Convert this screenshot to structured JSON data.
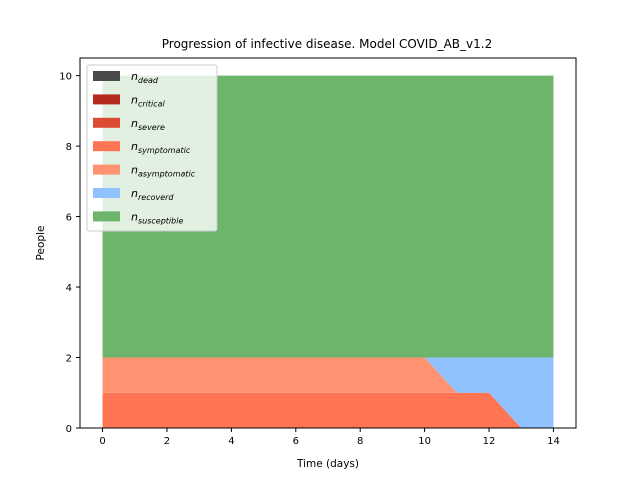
{
  "chart_data": {
    "type": "area",
    "title": "Progression of infective disease. Model COVID_AB_v1.2",
    "xlabel": "Time (days)",
    "ylabel": "People",
    "xlim": [
      -0.7,
      14.7
    ],
    "ylim": [
      0,
      10.5
    ],
    "x_ticks": [
      0,
      2,
      4,
      6,
      8,
      10,
      12,
      14
    ],
    "y_ticks": [
      0,
      2,
      4,
      6,
      8,
      10
    ],
    "stacked": true,
    "legend_placement": "top-left",
    "x": [
      0,
      1,
      2,
      3,
      4,
      5,
      6,
      7,
      8,
      9,
      10,
      11,
      12,
      13,
      14
    ],
    "series": [
      {
        "name": "n",
        "sub": "dead",
        "color": "#4a4a4a",
        "values": [
          0,
          0,
          0,
          0,
          0,
          0,
          0,
          0,
          0,
          0,
          0,
          0,
          0,
          0,
          0
        ]
      },
      {
        "name": "n",
        "sub": "critical",
        "color": "#b52b1f",
        "values": [
          0,
          0,
          0,
          0,
          0,
          0,
          0,
          0,
          0,
          0,
          0,
          0,
          0,
          0,
          0
        ]
      },
      {
        "name": "n",
        "sub": "severe",
        "color": "#dc4c33",
        "values": [
          0,
          0,
          0,
          0,
          0,
          0,
          0,
          0,
          0,
          0,
          0,
          0,
          0,
          0,
          0
        ]
      },
      {
        "name": "n",
        "sub": "symptomatic",
        "color": "#ff7452",
        "values": [
          1,
          1,
          1,
          1,
          1,
          1,
          1,
          1,
          1,
          1,
          1,
          1,
          1,
          0,
          0
        ]
      },
      {
        "name": "n",
        "sub": "asymptomatic",
        "color": "#ff9270",
        "values": [
          1,
          1,
          1,
          1,
          1,
          1,
          1,
          1,
          1,
          1,
          1,
          0,
          0,
          0,
          0
        ]
      },
      {
        "name": "n",
        "sub": "recoverd",
        "color": "#8fc2ff",
        "values": [
          0,
          0,
          0,
          0,
          0,
          0,
          0,
          0,
          0,
          0,
          0,
          1,
          1,
          2,
          2
        ]
      },
      {
        "name": "n",
        "sub": "susceptible",
        "color": "#6cb56a",
        "values": [
          8,
          8,
          8,
          8,
          8,
          8,
          8,
          8,
          8,
          8,
          8,
          8,
          8,
          8,
          8
        ]
      }
    ]
  }
}
